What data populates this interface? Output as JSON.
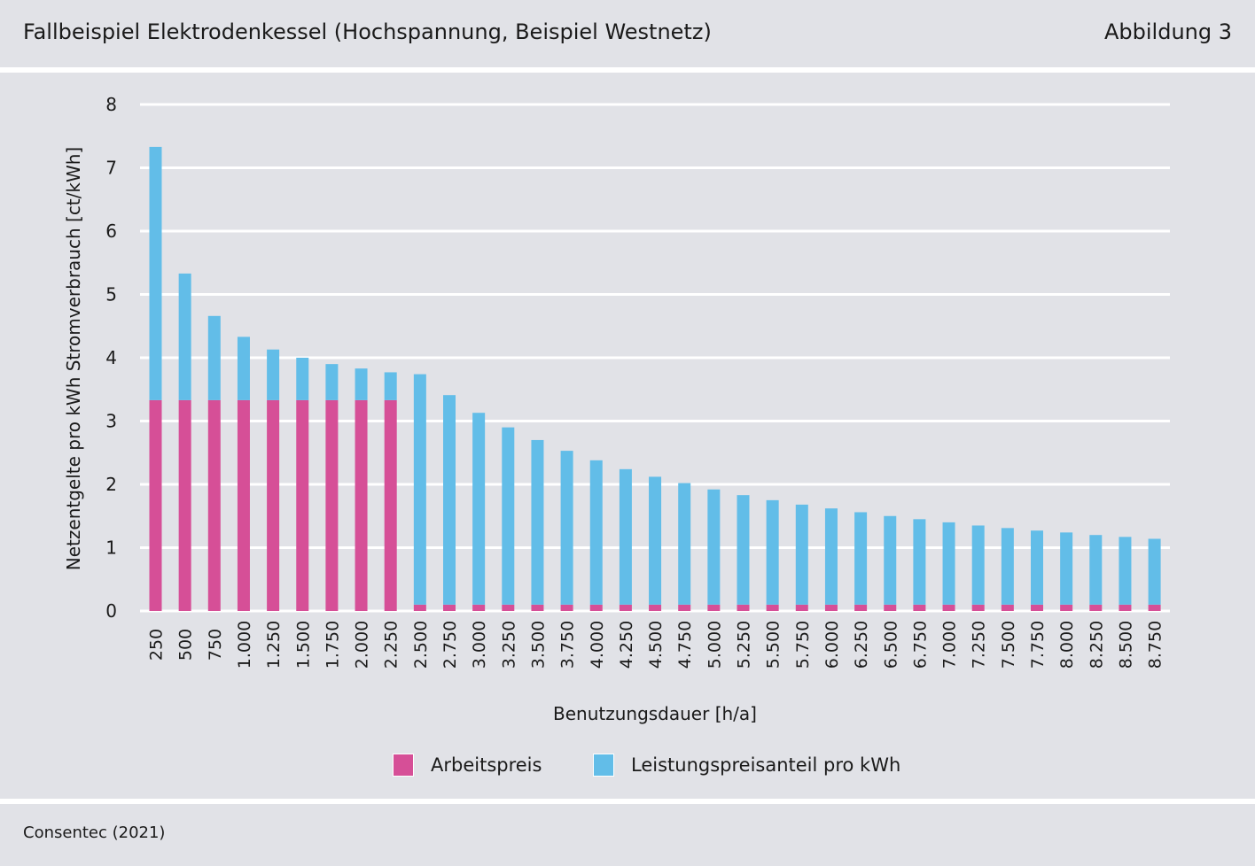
{
  "header": {
    "title": "Fallbeispiel Elektrodenkessel (Hochspannung, Beispiel Westnetz)",
    "figure_label": "Abbildung 3"
  },
  "footer": {
    "source": "Consentec (2021)"
  },
  "colors": {
    "arbeitspreis": "#d64f97",
    "leistungspreis": "#62bde8",
    "background": "#e1e2e7",
    "grid": "#ffffff"
  },
  "chart_data": {
    "type": "bar",
    "stacked": true,
    "categories": [
      "250",
      "500",
      "750",
      "1.000",
      "1.250",
      "1.500",
      "1.750",
      "2.000",
      "2.250",
      "2.500",
      "2.750",
      "3.000",
      "3.250",
      "3.500",
      "3.750",
      "4.000",
      "4.250",
      "4.500",
      "4.750",
      "5.000",
      "5.250",
      "5.500",
      "5.750",
      "6.000",
      "6.250",
      "6.500",
      "6.750",
      "7.000",
      "7.250",
      "7.500",
      "7.750",
      "8.000",
      "8.250",
      "8.500",
      "8.750"
    ],
    "series": [
      {
        "name": "Arbeitspreis",
        "color": "#d64f97",
        "values": [
          3.33,
          3.33,
          3.33,
          3.33,
          3.33,
          3.33,
          3.33,
          3.33,
          3.33,
          0.1,
          0.1,
          0.1,
          0.1,
          0.1,
          0.1,
          0.1,
          0.1,
          0.1,
          0.1,
          0.1,
          0.1,
          0.1,
          0.1,
          0.1,
          0.1,
          0.1,
          0.1,
          0.1,
          0.1,
          0.1,
          0.1,
          0.1,
          0.1,
          0.1,
          0.1
        ]
      },
      {
        "name": "Leistungspreisanteil pro kWh",
        "color": "#62bde8",
        "values": [
          4.0,
          2.0,
          1.33,
          1.0,
          0.8,
          0.67,
          0.57,
          0.5,
          0.44,
          3.64,
          3.31,
          3.03,
          2.8,
          2.6,
          2.43,
          2.28,
          2.14,
          2.02,
          1.92,
          1.82,
          1.73,
          1.65,
          1.58,
          1.52,
          1.46,
          1.4,
          1.35,
          1.3,
          1.25,
          1.21,
          1.17,
          1.14,
          1.1,
          1.07,
          1.04
        ]
      }
    ],
    "xlabel": "Benutzungsdauer [h/a]",
    "ylabel": "Netzentgelte pro kWh Stromverbrauch [ct/kWh]",
    "ylim": [
      0,
      8
    ],
    "yticks": [
      "0",
      "1",
      "2",
      "3",
      "4",
      "5",
      "6",
      "7",
      "8"
    ],
    "grid": true,
    "legend_position": "bottom"
  }
}
